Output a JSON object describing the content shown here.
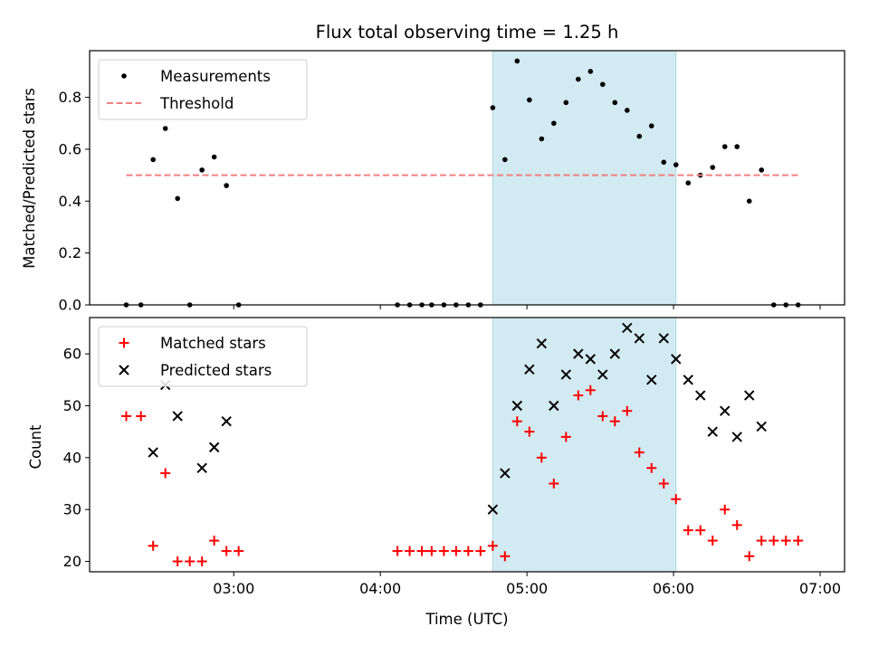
{
  "chart_data": [
    {
      "type": "scatter",
      "title": "Flux total observing time = 1.25 h",
      "ylabel": "Matched/Predicted stars",
      "xlim": [
        "02:01",
        "07:10"
      ],
      "ylim": [
        0,
        0.98
      ],
      "yticks": [
        "0.0",
        "0.2",
        "0.4",
        "0.6",
        "0.8"
      ],
      "ytick_values": [
        0,
        0.2,
        0.4,
        0.6,
        0.8
      ],
      "shaded_span": [
        "04:46",
        "06:01"
      ],
      "shade_color": "#add8e6",
      "legend_position": "upper-left",
      "series": [
        {
          "name": "Measurements",
          "kind": "points",
          "color": "#000000",
          "points": [
            [
              "02:16",
              0.0
            ],
            [
              "02:22",
              0.0
            ],
            [
              "02:27",
              0.56
            ],
            [
              "02:32",
              0.68
            ],
            [
              "02:37",
              0.41
            ],
            [
              "02:42",
              0.0
            ],
            [
              "02:47",
              0.52
            ],
            [
              "02:52",
              0.57
            ],
            [
              "02:57",
              0.46
            ],
            [
              "03:02",
              0.0
            ],
            [
              "04:07",
              0.0
            ],
            [
              "04:12",
              0.0
            ],
            [
              "04:17",
              0.0
            ],
            [
              "04:21",
              0.0
            ],
            [
              "04:26",
              0.0
            ],
            [
              "04:31",
              0.0
            ],
            [
              "04:36",
              0.0
            ],
            [
              "04:41",
              0.0
            ],
            [
              "04:46",
              0.76
            ],
            [
              "04:51",
              0.56
            ],
            [
              "04:56",
              0.94
            ],
            [
              "05:01",
              0.79
            ],
            [
              "05:06",
              0.64
            ],
            [
              "05:11",
              0.7
            ],
            [
              "05:16",
              0.78
            ],
            [
              "05:21",
              0.87
            ],
            [
              "05:26",
              0.9
            ],
            [
              "05:31",
              0.85
            ],
            [
              "05:36",
              0.78
            ],
            [
              "05:41",
              0.75
            ],
            [
              "05:46",
              0.65
            ],
            [
              "05:51",
              0.69
            ],
            [
              "05:56",
              0.55
            ],
            [
              "06:01",
              0.54
            ],
            [
              "06:06",
              0.47
            ],
            [
              "06:11",
              0.5
            ],
            [
              "06:16",
              0.53
            ],
            [
              "06:21",
              0.61
            ],
            [
              "06:26",
              0.61
            ],
            [
              "06:31",
              0.4
            ],
            [
              "06:36",
              0.52
            ],
            [
              "06:41",
              0.0
            ],
            [
              "06:46",
              0.0
            ],
            [
              "06:51",
              0.0
            ]
          ]
        },
        {
          "name": "Threshold",
          "kind": "dashed-line",
          "color": "#f08080",
          "points": [
            [
              "02:16",
              0.5
            ],
            [
              "06:51",
              0.5
            ]
          ]
        }
      ]
    },
    {
      "type": "scatter",
      "xlabel": "Time (UTC)",
      "ylabel": "Count",
      "xlim": [
        "02:01",
        "07:10"
      ],
      "ylim": [
        18,
        67
      ],
      "yticks": [
        "20",
        "30",
        "40",
        "50",
        "60"
      ],
      "ytick_values": [
        20,
        30,
        40,
        50,
        60
      ],
      "xticks": [
        "03:00",
        "04:00",
        "05:00",
        "06:00",
        "07:00"
      ],
      "shaded_span": [
        "04:46",
        "06:01"
      ],
      "shade_color": "#add8e6",
      "legend_position": "upper-left",
      "series": [
        {
          "name": "Matched stars",
          "kind": "plus",
          "color": "#ff0000",
          "points": [
            [
              "02:16",
              48
            ],
            [
              "02:22",
              48
            ],
            [
              "02:27",
              23
            ],
            [
              "02:32",
              37
            ],
            [
              "02:37",
              20
            ],
            [
              "02:42",
              20
            ],
            [
              "02:47",
              20
            ],
            [
              "02:52",
              24
            ],
            [
              "02:57",
              22
            ],
            [
              "03:02",
              22
            ],
            [
              "04:07",
              22
            ],
            [
              "04:12",
              22
            ],
            [
              "04:17",
              22
            ],
            [
              "04:21",
              22
            ],
            [
              "04:26",
              22
            ],
            [
              "04:31",
              22
            ],
            [
              "04:36",
              22
            ],
            [
              "04:41",
              22
            ],
            [
              "04:46",
              23
            ],
            [
              "04:51",
              21
            ],
            [
              "04:56",
              47
            ],
            [
              "05:01",
              45
            ],
            [
              "05:06",
              40
            ],
            [
              "05:11",
              35
            ],
            [
              "05:16",
              44
            ],
            [
              "05:21",
              52
            ],
            [
              "05:26",
              53
            ],
            [
              "05:31",
              48
            ],
            [
              "05:36",
              47
            ],
            [
              "05:41",
              49
            ],
            [
              "05:46",
              41
            ],
            [
              "05:51",
              38
            ],
            [
              "05:56",
              35
            ],
            [
              "06:01",
              32
            ],
            [
              "06:06",
              26
            ],
            [
              "06:11",
              26
            ],
            [
              "06:16",
              24
            ],
            [
              "06:21",
              30
            ],
            [
              "06:26",
              27
            ],
            [
              "06:31",
              21
            ],
            [
              "06:36",
              24
            ],
            [
              "06:41",
              24
            ],
            [
              "06:46",
              24
            ],
            [
              "06:51",
              24
            ]
          ]
        },
        {
          "name": "Predicted stars",
          "kind": "x",
          "color": "#000000",
          "points": [
            [
              "02:27",
              41
            ],
            [
              "02:32",
              54
            ],
            [
              "02:37",
              48
            ],
            [
              "02:47",
              38
            ],
            [
              "02:52",
              42
            ],
            [
              "02:57",
              47
            ],
            [
              "04:46",
              30
            ],
            [
              "04:51",
              37
            ],
            [
              "04:56",
              50
            ],
            [
              "05:01",
              57
            ],
            [
              "05:06",
              62
            ],
            [
              "05:11",
              50
            ],
            [
              "05:16",
              56
            ],
            [
              "05:21",
              60
            ],
            [
              "05:26",
              59
            ],
            [
              "05:31",
              56
            ],
            [
              "05:36",
              60
            ],
            [
              "05:41",
              65
            ],
            [
              "05:46",
              63
            ],
            [
              "05:51",
              55
            ],
            [
              "05:56",
              63
            ],
            [
              "06:01",
              59
            ],
            [
              "06:06",
              55
            ],
            [
              "06:11",
              52
            ],
            [
              "06:16",
              45
            ],
            [
              "06:21",
              49
            ],
            [
              "06:26",
              44
            ],
            [
              "06:31",
              52
            ],
            [
              "06:36",
              46
            ]
          ]
        }
      ]
    }
  ]
}
